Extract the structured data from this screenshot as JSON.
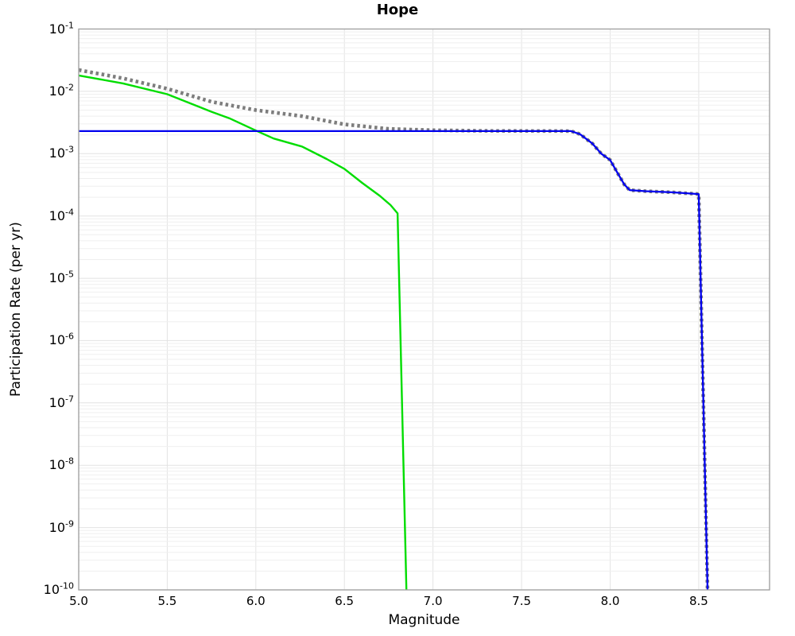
{
  "chart_data": {
    "type": "line",
    "title": "Hope",
    "xlabel": "Magnitude",
    "ylabel": "Participation Rate (per yr)",
    "xlim": [
      5.0,
      8.9
    ],
    "ylim": [
      1e-10,
      0.1
    ],
    "ylim_log10": [
      -10,
      -1
    ],
    "x_scale": "linear",
    "y_scale": "log",
    "grid": {
      "show": true,
      "vertical_color": "#e4e4e4",
      "major_color": "#e2e2e2",
      "minor_color": "#efefef"
    },
    "legend": {
      "show": false
    },
    "axis_color": "#a3a3a3",
    "background": "#ffffff",
    "x_ticks": [
      {
        "value": 5.0,
        "label": "5.0"
      },
      {
        "value": 5.5,
        "label": "5.5"
      },
      {
        "value": 6.0,
        "label": "6.0"
      },
      {
        "value": 6.5,
        "label": "6.5"
      },
      {
        "value": 7.0,
        "label": "7.0"
      },
      {
        "value": 7.5,
        "label": "7.5"
      },
      {
        "value": 8.0,
        "label": "8.0"
      },
      {
        "value": 8.5,
        "label": "8.5"
      }
    ],
    "y_tick_exponents": [
      -1,
      -2,
      -3,
      -4,
      -5,
      -6,
      -7,
      -8,
      -9,
      -10
    ],
    "series": [
      {
        "name": "green-solid-line",
        "color": "#00dd00",
        "style": "solid",
        "width": 2.4,
        "points": [
          [
            5.0,
            0.018
          ],
          [
            5.25,
            0.0134
          ],
          [
            5.5,
            0.009
          ],
          [
            5.75,
            0.0047
          ],
          [
            5.85,
            0.0037
          ],
          [
            6.0,
            0.00235
          ],
          [
            6.1,
            0.00175
          ],
          [
            6.26,
            0.0013
          ],
          [
            6.4,
            0.00082
          ],
          [
            6.5,
            0.00057
          ],
          [
            6.6,
            0.00034
          ],
          [
            6.7,
            0.00021
          ],
          [
            6.76,
            0.00015
          ],
          [
            6.8,
            0.00011
          ],
          [
            6.85,
            1e-10
          ]
        ]
      },
      {
        "name": "gray-dotted-line",
        "color": "#7d7d7d",
        "style": "dotted",
        "dash": "3.5 3.8",
        "width": 4.6,
        "points": [
          [
            5.0,
            0.022
          ],
          [
            5.25,
            0.0162
          ],
          [
            5.5,
            0.011
          ],
          [
            5.75,
            0.0068
          ],
          [
            6.0,
            0.005
          ],
          [
            6.26,
            0.004
          ],
          [
            6.5,
            0.00295
          ],
          [
            6.75,
            0.0025
          ],
          [
            7.0,
            0.00238
          ],
          [
            7.3,
            0.00232
          ],
          [
            7.78,
            0.0023
          ],
          [
            7.83,
            0.00205
          ],
          [
            7.9,
            0.00145
          ],
          [
            7.95,
            0.001
          ],
          [
            8.0,
            0.00079
          ],
          [
            8.04,
            0.0005
          ],
          [
            8.08,
            0.00032
          ],
          [
            8.11,
            0.00026
          ],
          [
            8.2,
            0.00025
          ],
          [
            8.35,
            0.00024
          ],
          [
            8.5,
            0.000225
          ],
          [
            8.55,
            1e-10
          ]
        ]
      },
      {
        "name": "blue-solid-line",
        "color": "#0000ee",
        "style": "solid",
        "width": 2.3,
        "points": [
          [
            5.0,
            0.0023
          ],
          [
            7.78,
            0.0023
          ],
          [
            7.83,
            0.00205
          ],
          [
            7.9,
            0.00145
          ],
          [
            7.95,
            0.001
          ],
          [
            8.0,
            0.00079
          ],
          [
            8.04,
            0.0005
          ],
          [
            8.08,
            0.00032
          ],
          [
            8.11,
            0.00026
          ],
          [
            8.2,
            0.00025
          ],
          [
            8.35,
            0.00024
          ],
          [
            8.5,
            0.000225
          ],
          [
            8.55,
            1e-10
          ]
        ]
      }
    ]
  }
}
